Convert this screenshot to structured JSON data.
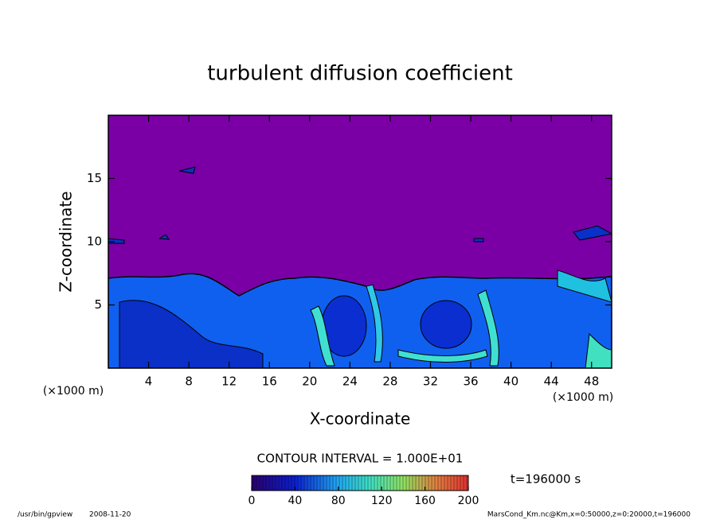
{
  "chart_data": {
    "type": "contour",
    "title": "turbulent diffusion coefficient",
    "xlabel": "X-coordinate",
    "ylabel": "Z-coordinate",
    "axis_unit": "(×1000 m)",
    "xlim": [
      0,
      50
    ],
    "xticks": [
      4,
      8,
      12,
      16,
      20,
      24,
      28,
      32,
      36,
      40,
      44,
      48
    ],
    "ylim": [
      0,
      20
    ],
    "yticks": [
      5,
      10,
      15
    ],
    "colorbar": {
      "lim": [
        0,
        200
      ],
      "ticks": [
        0,
        40,
        80,
        120,
        160,
        200
      ]
    },
    "contour_interval": "CONTOUR INTERVAL = 1.000E+01",
    "time": "t=196000 s",
    "footer_left": [
      "/usr/bin/gpview",
      "2008-11-20"
    ],
    "footer_right": "MarsCond_Km.nc@Km,x=0:50000,z=0:20000,t=196000"
  }
}
